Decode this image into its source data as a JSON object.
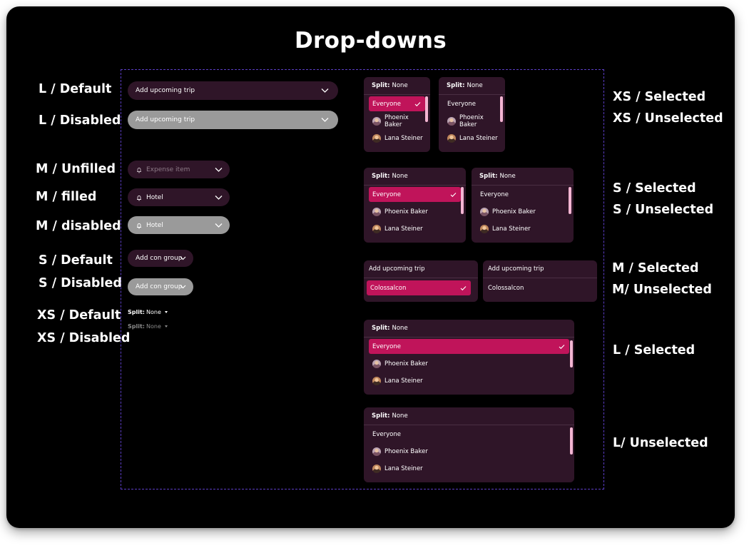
{
  "title": "Drop-downs",
  "left_labels": {
    "l_default": "L / Default",
    "l_disabled": "L / Disabled",
    "m_unfilled": "M / Unfilled",
    "m_filled": "M / filled",
    "m_disabled": "M / disabled",
    "s_default": "S / Default",
    "s_disabled": "S / Disabled",
    "xs_default": "XS / Default",
    "xs_disabled": "XS / Disabled"
  },
  "right_labels": {
    "xs_selected": "XS / Selected",
    "xs_unselected": "XS / Unselected",
    "s_selected": "S / Selected",
    "s_unselected": "S / Unselected",
    "m_selected": "M / Selected",
    "m_unselected": "M/ Unselected",
    "l_selected": "L / Selected",
    "l_unselected": "L/ Unselected"
  },
  "dropdowns": {
    "large_value": "Add upcoming trip",
    "medium_placeholder": "Expense item",
    "medium_value": "Hotel",
    "small_value": "Add con group",
    "xs_key": "Split:",
    "xs_value": "None"
  },
  "menu": {
    "split_key": "Split:",
    "split_value": "None",
    "options": [
      "Everyone",
      "Phoenix Baker",
      "Lana Steiner"
    ],
    "trip_header": "Add upcoming trip",
    "trip_option": "Colossalcon"
  },
  "colors": {
    "background": "#000000",
    "surface": "#2f1528",
    "selected": "#c0145a",
    "disabled": "#9a9a9a",
    "scrollbar": "#f3b5d2",
    "frame_border": "#5b3dc5"
  }
}
